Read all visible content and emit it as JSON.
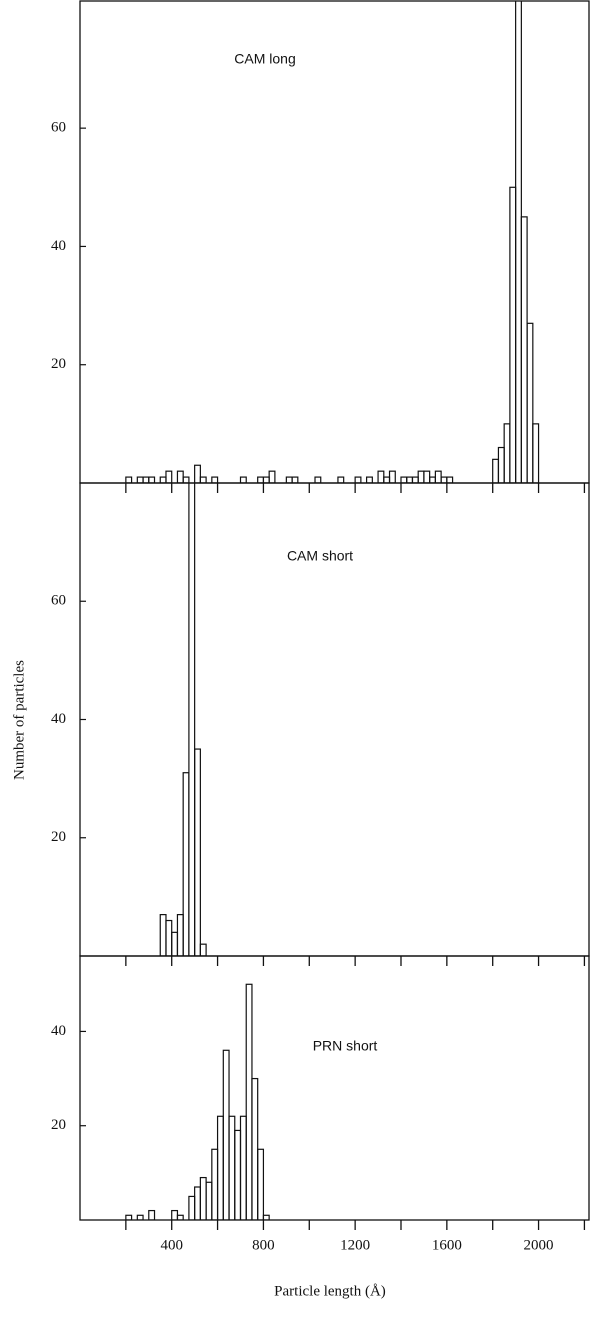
{
  "chart_data": [
    {
      "type": "histogram",
      "title": "CAM long",
      "bins": [
        200,
        225,
        250,
        275,
        300,
        325,
        350,
        375,
        400,
        425,
        450,
        475,
        500,
        525,
        550,
        575,
        600,
        625,
        650,
        675,
        700,
        725,
        750,
        775,
        800,
        825,
        850,
        875,
        900,
        925,
        950,
        975,
        1000,
        1025,
        1050,
        1075,
        1100,
        1125,
        1150,
        1175,
        1200,
        1225,
        1250,
        1275,
        1300,
        1325,
        1350,
        1375,
        1400,
        1425,
        1450,
        1475,
        1500,
        1525,
        1550,
        1575,
        1600,
        1625,
        1650,
        1675,
        1700,
        1725,
        1750,
        1775,
        1800,
        1825,
        1850,
        1875,
        1900,
        1925,
        1950,
        1975,
        2000,
        2025,
        2050
      ],
      "values": [
        1,
        0,
        1,
        1,
        1,
        0,
        1,
        2,
        0,
        2,
        1,
        0,
        3,
        1,
        0,
        1,
        0,
        0,
        0,
        0,
        1,
        0,
        0,
        1,
        1,
        2,
        0,
        0,
        1,
        1,
        0,
        0,
        0,
        1,
        0,
        0,
        0,
        1,
        0,
        0,
        1,
        0,
        1,
        0,
        2,
        1,
        2,
        0,
        1,
        1,
        1,
        2,
        2,
        1,
        2,
        1,
        1,
        0,
        0,
        0,
        0,
        0,
        0,
        0,
        4,
        6,
        10,
        50,
        90,
        45,
        27,
        10,
        0,
        0
      ],
      "xlim": [
        0,
        2220
      ],
      "ylim": [
        0,
        81.5
      ],
      "yticks": [
        20,
        40,
        60
      ],
      "xminor": [
        200,
        400,
        600,
        800,
        1000,
        1200,
        1400,
        1600,
        1800,
        2000,
        2200
      ],
      "color": "#111111"
    },
    {
      "type": "histogram",
      "title": "CAM short",
      "ylabel": "Number of particles",
      "bins": [
        350,
        375,
        400,
        425,
        450,
        475,
        500,
        525,
        550
      ],
      "values": [
        7,
        6,
        4,
        7,
        31,
        90,
        35,
        2
      ],
      "xlim": [
        0,
        2220
      ],
      "ylim": [
        0,
        80
      ],
      "yticks": [
        20,
        40,
        60
      ],
      "xminor": [
        200,
        400,
        600,
        800,
        1000,
        1200,
        1400,
        1600,
        1800,
        2000,
        2200
      ],
      "color": "#111111"
    },
    {
      "type": "histogram",
      "title": "PRN short",
      "xlabel": "Particle length (Å)",
      "bins": [
        200,
        225,
        250,
        275,
        300,
        325,
        350,
        375,
        400,
        425,
        450,
        475,
        500,
        525,
        550,
        575,
        600,
        625,
        650,
        675,
        700,
        725,
        750,
        775,
        800,
        825,
        850
      ],
      "values": [
        1,
        0,
        1,
        0,
        2,
        0,
        0,
        0,
        2,
        1,
        0,
        5,
        7,
        9,
        8,
        15,
        22,
        36,
        22,
        19,
        22,
        50,
        30,
        15,
        1,
        0
      ],
      "xlim": [
        0,
        2220
      ],
      "ylim": [
        0,
        56
      ],
      "yticks": [
        20,
        40
      ],
      "xticks": [
        400,
        800,
        1200,
        1600,
        2000
      ],
      "xminor": [
        200,
        600,
        1000,
        1400,
        1800,
        2200
      ],
      "color": "#111111"
    }
  ]
}
